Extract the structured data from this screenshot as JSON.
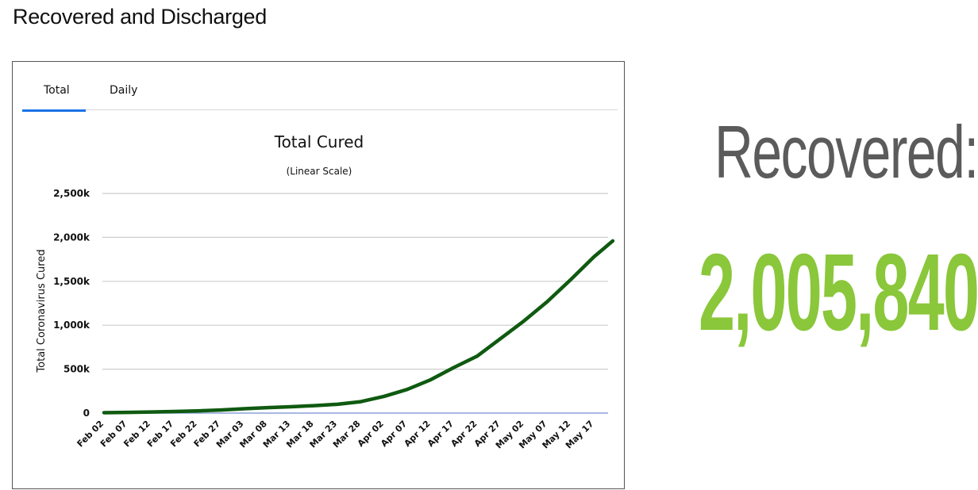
{
  "page": {
    "heading": "Recovered and Discharged"
  },
  "tabs": [
    {
      "label": "Total",
      "active": true
    },
    {
      "label": "Daily",
      "active": false
    }
  ],
  "summary": {
    "label": "Recovered:",
    "value": "2,005,840",
    "label_color": "#5b5b5b",
    "value_color": "#8ac73a"
  },
  "colors": {
    "line": "#0f5a10",
    "accent_tab": "#1a73e8",
    "grid": "#cccccc",
    "baseline": "#8aa0d8"
  },
  "chart_data": {
    "type": "line",
    "title": "Total Cured",
    "subtitle": "(Linear Scale)",
    "ylabel": "Total Coronavirus Cured",
    "xlabel": "",
    "ylim": [
      0,
      2500000
    ],
    "yticks": [
      0,
      500000,
      1000000,
      1500000,
      2000000,
      2500000
    ],
    "ytick_labels": [
      "0",
      "500k",
      "1,000k",
      "1,500k",
      "2,000k",
      "2,500k"
    ],
    "x_tick_labels": [
      "Feb 02",
      "Feb 07",
      "Feb 12",
      "Feb 17",
      "Feb 22",
      "Feb 27",
      "Mar 03",
      "Mar 08",
      "Mar 13",
      "Mar 18",
      "Mar 23",
      "Mar 28",
      "Apr 02",
      "Apr 07",
      "Apr 12",
      "Apr 17",
      "Apr 22",
      "Apr 27",
      "May 02",
      "May 07",
      "May 12",
      "May 17"
    ],
    "grid": true,
    "legend": "none",
    "series": [
      {
        "x": [
          "Feb 02",
          "Feb 07",
          "Feb 12",
          "Feb 17",
          "Feb 22",
          "Feb 27",
          "Mar 03",
          "Mar 08",
          "Mar 13",
          "Mar 18",
          "Mar 23",
          "Mar 28",
          "Apr 02",
          "Apr 07",
          "Apr 12",
          "Apr 17",
          "Apr 22",
          "Apr 27",
          "May 02",
          "May 07",
          "May 12",
          "May 17",
          "May 21"
        ],
        "values": [
          5000,
          8000,
          12000,
          18000,
          25000,
          35000,
          50000,
          62000,
          72000,
          85000,
          100000,
          130000,
          190000,
          270000,
          380000,
          520000,
          650000,
          850000,
          1050000,
          1270000,
          1520000,
          1780000,
          1960000
        ]
      }
    ]
  }
}
